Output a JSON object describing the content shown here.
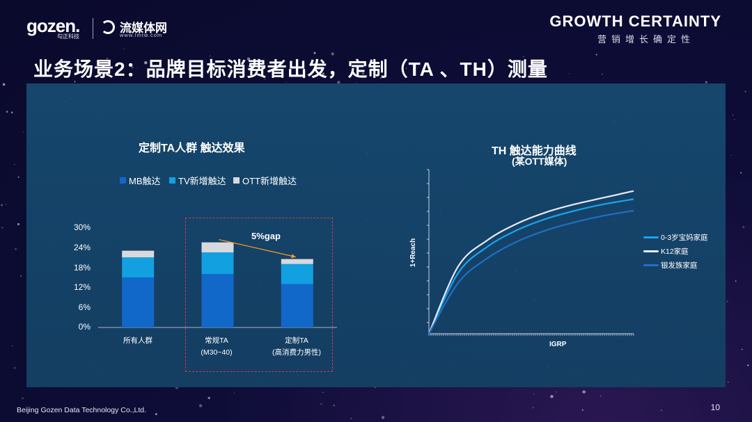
{
  "header": {
    "logo_gozen": "gozen.",
    "logo_gozen_sub": "勾正科技",
    "logo_liumeiti": "流媒体网",
    "logo_liumeiti_url": "www.lmtw.com",
    "brand": "GROWTH CERTAINTY",
    "brand_sub": "营销增长确定性"
  },
  "title": "业务场景2：品牌目标消费者出发，定制（TA 、TH）测量",
  "footer": {
    "company": "Beijing Gozen Data Technology Co.,Ltd.",
    "page": "10"
  },
  "colors": {
    "mb": "#1268c9",
    "tv": "#12a0e0",
    "ott": "#d7d9de",
    "line1": "#1ba3ee",
    "line2": "#e6ecf8",
    "line3": "#1f6fc4",
    "gap_arrow": "#f29b21",
    "dashed": "#d33b48"
  },
  "chart_data": [
    {
      "type": "bar",
      "stacked": true,
      "title": "定制TA人群 触达效果",
      "categories": [
        "所有人群",
        "常规TA\n(M30~40)",
        "定制TA\n(高消费力男性)"
      ],
      "category_lines": [
        [
          "所有人群"
        ],
        [
          "常规TA",
          "(M30~40)"
        ],
        [
          "定制TA",
          "(高消费力男性)"
        ]
      ],
      "series": [
        {
          "name": "MB触达",
          "values": [
            15,
            16,
            13
          ]
        },
        {
          "name": "TV新增触达",
          "values": [
            6,
            6.5,
            6
          ]
        },
        {
          "name": "OTT新增触达",
          "values": [
            2,
            3,
            1.5
          ]
        }
      ],
      "yticks": [
        "30%",
        "24%",
        "18%",
        "12%",
        "6%",
        "0%"
      ],
      "ylim": [
        0,
        30
      ],
      "annotation": "5%gap",
      "legend_position": "top"
    },
    {
      "type": "line",
      "title": "TH 触达能力曲线",
      "subtitle": "(某OTT媒体)",
      "xlabel": "IGRP",
      "ylabel": "1+Reach",
      "series": [
        {
          "name": "0-3岁宝妈家庭",
          "values": [
            0,
            0.37,
            0.53,
            0.63,
            0.7,
            0.75,
            0.79,
            0.82
          ]
        },
        {
          "name": "K12家庭",
          "values": [
            0,
            0.41,
            0.57,
            0.67,
            0.74,
            0.79,
            0.83,
            0.87
          ]
        },
        {
          "name": "银发族家庭",
          "values": [
            0,
            0.31,
            0.46,
            0.56,
            0.63,
            0.68,
            0.72,
            0.75
          ]
        }
      ],
      "x": [
        0,
        1,
        2,
        3,
        4,
        5,
        6,
        7
      ],
      "ylim": [
        0,
        1
      ],
      "legend_position": "right"
    }
  ]
}
